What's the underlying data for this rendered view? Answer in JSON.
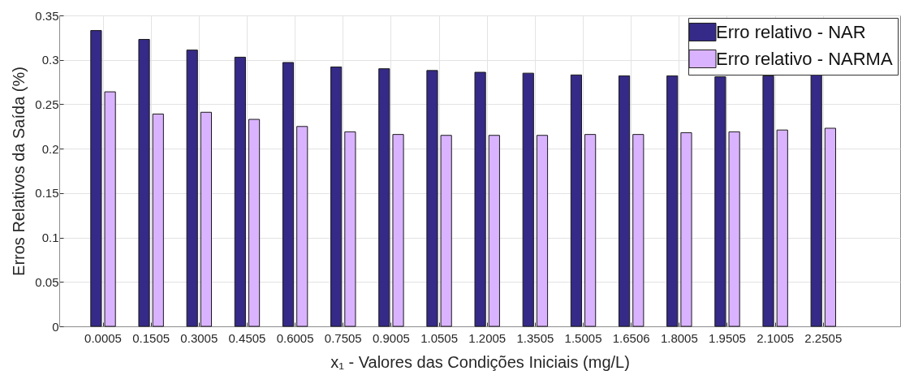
{
  "chart_data": {
    "type": "bar",
    "xlabel": "x₁ - Valores das Condições Iniciais (mg/L)",
    "ylabel": "Erros Relativos da Saída (%)",
    "categories": [
      "0.0005",
      "0.1505",
      "0.3005",
      "0.4505",
      "0.6005",
      "0.7505",
      "0.9005",
      "1.0505",
      "1.2005",
      "1.3505",
      "1.5005",
      "1.6506",
      "1.8005",
      "1.9505",
      "2.1005",
      "2.2505"
    ],
    "series": [
      {
        "name": "Erro relativo - NAR",
        "color": "#352a87",
        "values": [
          0.333,
          0.323,
          0.311,
          0.303,
          0.297,
          0.292,
          0.29,
          0.288,
          0.286,
          0.285,
          0.283,
          0.282,
          0.282,
          0.281,
          0.282,
          0.283
        ]
      },
      {
        "name": "Erro relativo - NARMA",
        "color": "#d9b3ff",
        "values": [
          0.264,
          0.239,
          0.241,
          0.233,
          0.225,
          0.219,
          0.216,
          0.215,
          0.215,
          0.215,
          0.216,
          0.216,
          0.218,
          0.219,
          0.221,
          0.223
        ]
      }
    ],
    "ylim": [
      0,
      0.35
    ],
    "yticks": [
      0,
      0.05,
      0.1,
      0.15,
      0.2,
      0.25,
      0.3,
      0.35
    ],
    "grid": true,
    "legend": "top right"
  }
}
